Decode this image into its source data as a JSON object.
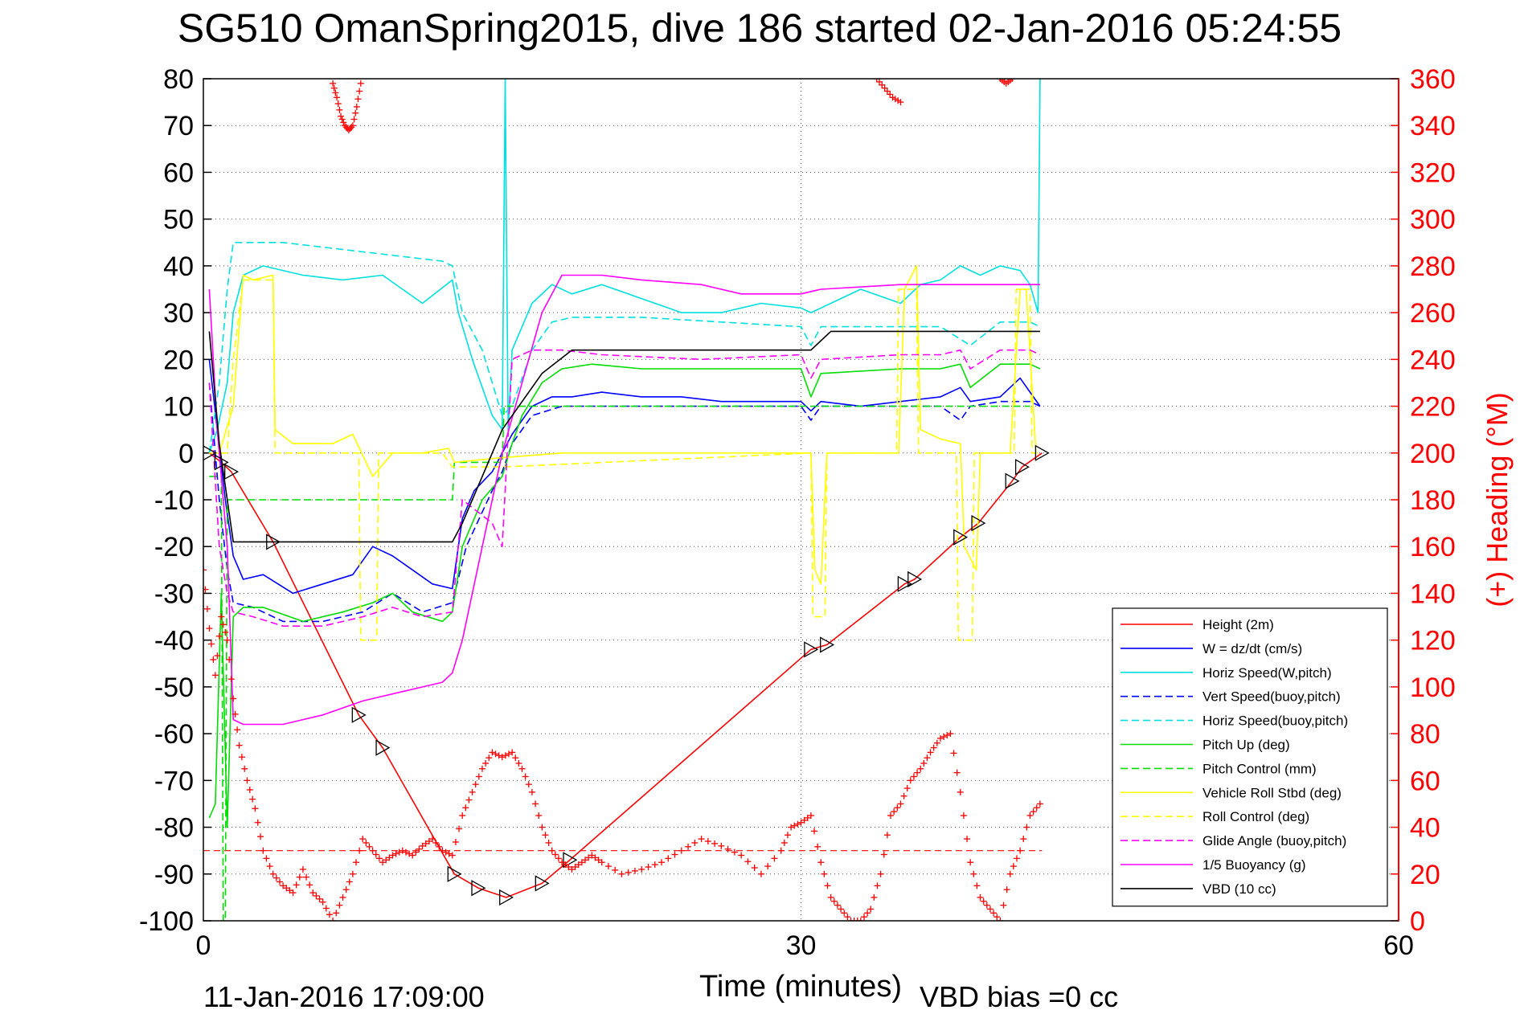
{
  "chart_data": {
    "type": "line",
    "title": "SG510 OmanSpring2015, dive 186 started 02-Jan-2016 05:24:55",
    "xlabel": "Time (minutes)",
    "ylabel_right": "(+) Heading (°M)",
    "footer_left": "11-Jan-2016 17:09:00",
    "footer_right": "VBD bias =0 cc",
    "xlim": [
      0,
      60
    ],
    "ylim": [
      -100,
      80
    ],
    "ylim_right": [
      0,
      360
    ],
    "x_ticks": [
      "0",
      "30",
      "60"
    ],
    "y_ticks": [
      "80",
      "70",
      "60",
      "50",
      "40",
      "30",
      "20",
      "10",
      "0",
      "-10",
      "-20",
      "-30",
      "-40",
      "-50",
      "-60",
      "-70",
      "-80",
      "-90",
      "-100"
    ],
    "y_ticks_right": [
      "360",
      "340",
      "320",
      "300",
      "280",
      "260",
      "240",
      "220",
      "200",
      "180",
      "160",
      "140",
      "120",
      "100",
      "80",
      "60",
      "40",
      "20",
      "0"
    ],
    "grid": true,
    "legend_position": "bottom-right",
    "heading_reference": 30,
    "series": [
      {
        "name": "Height (2m)",
        "color": "#ff0000",
        "style": "solid",
        "x": [
          0.3,
          0.9,
          1.4,
          3.5,
          7.8,
          9.0,
          12.6,
          13.8,
          15.2,
          17.0,
          18.4,
          30.5,
          31.3,
          35.2,
          35.7,
          38.0,
          38.9,
          40.6,
          41.1,
          42.1
        ],
        "values": [
          0,
          -2,
          -4,
          -19,
          -56,
          -63,
          -90,
          -93,
          -95,
          -92,
          -87,
          -42,
          -41,
          -28,
          -27,
          -18,
          -15,
          -6,
          -3,
          0
        ]
      },
      {
        "name": "W = dz/dt (cm/s)",
        "color": "#0000ff",
        "style": "solid",
        "x": [
          0.3,
          0.7,
          1.1,
          1.5,
          2.0,
          3.0,
          4.5,
          6.0,
          7.5,
          8.5,
          9.5,
          10.5,
          11.5,
          12.5,
          13.0,
          13.6,
          14.5,
          15.5,
          16.5,
          17.5,
          18.5,
          20.0,
          22.0,
          24.0,
          26.0,
          28.0,
          30.0,
          30.5,
          31.0,
          33.0,
          35.0,
          37.0,
          38.0,
          38.5,
          40.0,
          41.0,
          41.5,
          42.0
        ],
        "values": [
          20,
          5,
          -10,
          -22,
          -27,
          -26,
          -30,
          -28,
          -26,
          -20,
          -22,
          -25,
          -28,
          -29,
          -14,
          -8,
          -4,
          4,
          10,
          12,
          12,
          13,
          12,
          12,
          11,
          11,
          11,
          9,
          11,
          10,
          11,
          12,
          14,
          11,
          12,
          16,
          13,
          10
        ]
      },
      {
        "name": "Horiz Speed(W,pitch)",
        "color": "#00e0e0",
        "style": "solid",
        "x": [
          0.3,
          0.7,
          1.2,
          1.5,
          2.0,
          3.0,
          5.0,
          7.0,
          9.0,
          10.0,
          11.0,
          12.5,
          12.8,
          13.5,
          14.5,
          15.0,
          15.15,
          15.3,
          15.5,
          16.5,
          17.5,
          18.5,
          20.0,
          22.0,
          24.0,
          26.0,
          28.0,
          30.0,
          30.5,
          31.0,
          33.0,
          35.0,
          36.0,
          37.0,
          38.0,
          39.0,
          40.0,
          41.0,
          41.5,
          41.9,
          42.0
        ],
        "values": [
          0,
          5,
          15,
          30,
          38,
          40,
          38,
          37,
          38,
          35,
          32,
          37,
          30,
          20,
          8,
          5,
          80,
          5,
          22,
          32,
          36,
          34,
          36,
          33,
          30,
          30,
          32,
          31,
          30,
          31,
          35,
          32,
          36,
          37,
          40,
          38,
          40,
          39,
          36,
          30,
          80
        ]
      },
      {
        "name": "Vert Speed(buoy,pitch)",
        "color": "#0000ff",
        "style": "dashed",
        "x": [
          0.3,
          0.8,
          1.2,
          1.5,
          2.5,
          4.0,
          6.0,
          8.0,
          9.5,
          11.0,
          12.5,
          13.2,
          14.5,
          15.0,
          15.5,
          16.5,
          18.0,
          20.0,
          25.0,
          30.0,
          30.5,
          31.0,
          35.0,
          37.0,
          38.0,
          38.5,
          40.0,
          41.5,
          42.0
        ],
        "values": [
          15,
          -10,
          -25,
          -32,
          -33,
          -36,
          -36,
          -34,
          -30,
          -34,
          -32,
          -20,
          -8,
          -4,
          2,
          8,
          10,
          10,
          10,
          10,
          7,
          10,
          10,
          10,
          7,
          10,
          11,
          11,
          10
        ]
      },
      {
        "name": "Horiz Speed(buoy,pitch)",
        "color": "#00e0e0",
        "style": "dashed",
        "x": [
          0.3,
          0.8,
          1.2,
          1.5,
          2.5,
          4.0,
          6.0,
          8.0,
          10.0,
          12.0,
          12.5,
          13.0,
          14.0,
          14.5,
          15.0,
          15.5,
          16.5,
          17.5,
          18.5,
          22.0,
          26.0,
          30.0,
          30.5,
          31.0,
          35.0,
          37.0,
          38.5,
          40.0,
          41.5,
          42.0
        ],
        "values": [
          0,
          15,
          35,
          45,
          45,
          45,
          44,
          43,
          42,
          41,
          40,
          30,
          22,
          15,
          8,
          10,
          22,
          28,
          29,
          29,
          28,
          27,
          23,
          27,
          27,
          27,
          23,
          28,
          28,
          27
        ]
      },
      {
        "name": "Pitch Up (deg)",
        "color": "#00dd00",
        "style": "solid",
        "x": [
          0.3,
          0.6,
          0.9,
          1.2,
          1.5,
          2.0,
          3.0,
          5.0,
          7.0,
          8.5,
          9.5,
          10.5,
          12.0,
          12.5,
          13.0,
          14.0,
          15.0,
          15.5,
          16.0,
          17.0,
          18.0,
          19.5,
          22.0,
          26.0,
          30.0,
          30.5,
          31.0,
          35.0,
          37.0,
          38.0,
          38.5,
          40.0,
          41.5,
          42.0
        ],
        "values": [
          -78,
          -75,
          -30,
          -80,
          -35,
          -33,
          -33,
          -36,
          -34,
          -32,
          -30,
          -34,
          -36,
          -34,
          -20,
          -10,
          -5,
          2,
          8,
          15,
          18,
          19,
          18,
          18,
          18,
          12,
          17,
          18,
          18,
          19,
          14,
          19,
          19,
          18
        ]
      },
      {
        "name": "Pitch Control (mm)",
        "color": "#00dd00",
        "style": "dashed",
        "x": [
          0.3,
          0.9,
          1.0,
          1.1,
          1.2,
          1.5,
          12.5,
          12.6,
          15.0,
          15.1,
          20.0,
          30.0,
          35.0,
          41.0,
          41.5
        ],
        "values": [
          -5,
          -5,
          -100,
          -100,
          -10,
          -10,
          -10,
          -2,
          -2,
          10,
          10,
          10,
          10,
          10,
          10
        ]
      },
      {
        "name": "Vehicle Roll Stbd (deg)",
        "color": "#ffff00",
        "style": "solid",
        "x": [
          0.3,
          0.8,
          1.5,
          2.0,
          2.5,
          3.5,
          3.6,
          4.5,
          6.5,
          7.5,
          8.5,
          9.5,
          11.0,
          12.3,
          12.6,
          15.0,
          18.0,
          25.0,
          30.5,
          30.7,
          31.0,
          31.3,
          33.0,
          34.9,
          35.2,
          35.8,
          36.0,
          37.0,
          38.0,
          38.2,
          38.8,
          39.0,
          40.5,
          41.0,
          41.3,
          41.8
        ],
        "values": [
          0,
          0,
          10,
          38,
          37,
          38,
          5,
          2,
          2,
          4,
          -5,
          0,
          0,
          1,
          -2,
          -1,
          0,
          0,
          0,
          -25,
          -28,
          0,
          0,
          0,
          35,
          40,
          5,
          3,
          2,
          -20,
          -25,
          0,
          0,
          35,
          35,
          0
        ]
      },
      {
        "name": "Roll Control (deg)",
        "color": "#ffff00",
        "style": "dashed",
        "x": [
          0.3,
          1.2,
          1.5,
          2.0,
          3.5,
          3.6,
          7.8,
          7.9,
          8.7,
          8.8,
          12.0,
          12.5,
          15.0,
          30.5,
          30.6,
          31.2,
          31.3,
          34.8,
          34.9,
          35.8,
          35.9,
          37.8,
          37.9,
          38.6,
          38.7,
          40.7,
          40.8,
          41.5,
          41.6,
          42.0
        ],
        "values": [
          0,
          0,
          20,
          37,
          37,
          0,
          0,
          -40,
          -40,
          0,
          0,
          -3,
          -3,
          0,
          -35,
          -35,
          0,
          0,
          35,
          35,
          0,
          0,
          -40,
          -40,
          0,
          0,
          35,
          35,
          0,
          0
        ]
      },
      {
        "name": "Glide Angle (buoy,pitch)",
        "color": "#ff00ff",
        "style": "dashed",
        "x": [
          0.3,
          0.8,
          1.2,
          1.5,
          2.5,
          4.0,
          6.0,
          8.0,
          9.5,
          11.0,
          12.5,
          13.0,
          14.5,
          15.0,
          15.5,
          16.5,
          18.0,
          20.0,
          25.0,
          30.0,
          30.5,
          31.0,
          35.0,
          37.0,
          38.0,
          38.5,
          40.0,
          41.5,
          42.0
        ],
        "values": [
          15,
          -20,
          -30,
          -34,
          -35,
          -37,
          -37,
          -35,
          -33,
          -35,
          -34,
          -10,
          -15,
          -20,
          20,
          22,
          22,
          21,
          20,
          21,
          16,
          20,
          21,
          21,
          22,
          18,
          22,
          22,
          21
        ]
      },
      {
        "name": "1/5 Buoyancy (g)",
        "color": "#ff00ff",
        "style": "solid",
        "x": [
          0.3,
          0.7,
          1.2,
          1.5,
          2.0,
          4.0,
          6.0,
          8.0,
          10.0,
          12.0,
          12.5,
          13.0,
          14.0,
          15.0,
          16.0,
          17.0,
          18.0,
          20.0,
          22.0,
          25.0,
          27.0,
          30.0,
          31.0,
          35.0,
          38.0,
          41.0,
          42.0
        ],
        "values": [
          35,
          5,
          -20,
          -57,
          -58,
          -58,
          -56,
          -53,
          -51,
          -49,
          -47,
          -40,
          -20,
          0,
          15,
          30,
          38,
          38,
          37,
          36,
          34,
          34,
          35,
          36,
          36,
          36,
          36
        ]
      },
      {
        "name": "VBD (10 cc)",
        "color": "#000000",
        "style": "solid",
        "x": [
          0.3,
          0.8,
          1.5,
          2.0,
          12.5,
          13.0,
          15.0,
          17.0,
          18.5,
          30.5,
          31.0,
          31.5,
          42.0
        ],
        "values": [
          26,
          2,
          -19,
          -19,
          -19,
          -15,
          5,
          17,
          22,
          22,
          24,
          26,
          26
        ]
      }
    ],
    "heading_series": {
      "name": "(+) Heading (°M)",
      "color": "#ff0000",
      "x": [
        0.0,
        0.3,
        0.6,
        0.9,
        1.2,
        1.5,
        1.8,
        2.2,
        2.6,
        3.0,
        3.5,
        4.0,
        4.5,
        5.0,
        5.5,
        6.0,
        6.5,
        7.0,
        7.5,
        8.0,
        8.5,
        9.0,
        9.5,
        10.0,
        10.5,
        11.0,
        11.5,
        12.0,
        12.5,
        13.0,
        13.5,
        14.0,
        14.5,
        15.0,
        15.5,
        16.0,
        16.5,
        17.0,
        17.5,
        18.0,
        18.5,
        19.0,
        19.5,
        20.0,
        21.0,
        22.0,
        23.0,
        24.0,
        25.0,
        26.0,
        27.0,
        28.0,
        29.0,
        29.5,
        30.0,
        30.5,
        31.0,
        31.5,
        32.0,
        32.5,
        33.0,
        33.5,
        34.0,
        34.5,
        35.0,
        35.5,
        36.0,
        36.5,
        37.0,
        37.5,
        38.0,
        38.5,
        39.0,
        39.5,
        40.0,
        40.5,
        41.0,
        41.5,
        42.0
      ],
      "values": [
        150,
        125,
        105,
        130,
        120,
        95,
        75,
        60,
        48,
        30,
        20,
        15,
        12,
        22,
        12,
        8,
        0,
        10,
        20,
        35,
        30,
        25,
        28,
        30,
        28,
        32,
        35,
        30,
        28,
        45,
        55,
        65,
        72,
        70,
        72,
        65,
        55,
        40,
        30,
        25,
        22,
        25,
        28,
        25,
        20,
        22,
        25,
        30,
        35,
        32,
        28,
        20,
        30,
        40,
        42,
        45,
        25,
        10,
        5,
        0,
        0,
        5,
        20,
        45,
        50,
        60,
        65,
        72,
        78,
        80,
        55,
        25,
        10,
        5,
        0,
        20,
        30,
        45,
        50
      ]
    },
    "heading_top_fragments": [
      {
        "x": [
          6.5,
          6.7,
          6.9,
          7.1,
          7.3,
          7.5,
          7.7,
          7.9
        ],
        "values": [
          358,
          352,
          344,
          340,
          338,
          340,
          348,
          358
        ]
      },
      {
        "x": [
          33.8,
          34.2,
          34.6,
          35.0
        ],
        "values": [
          360,
          356,
          352,
          350
        ]
      },
      {
        "x": [
          40.0,
          40.3,
          40.6
        ],
        "values": [
          360,
          358,
          360
        ]
      }
    ]
  }
}
